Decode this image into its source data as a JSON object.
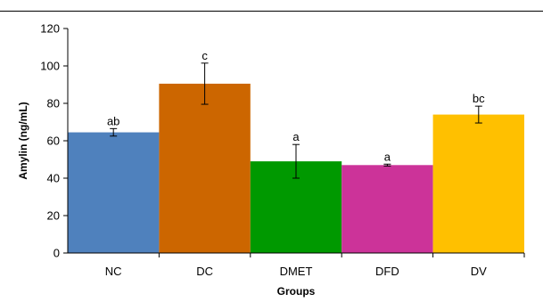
{
  "chart_data": {
    "type": "bar",
    "title": "",
    "xlabel": "Groups",
    "ylabel": "Amylin (ng/mL)",
    "ylim": [
      0,
      120
    ],
    "yticks": [
      0,
      20,
      40,
      60,
      80,
      100,
      120
    ],
    "grid": false,
    "legend": "none",
    "categories": [
      "NC",
      "DC",
      "DMET",
      "DFD",
      "DV"
    ],
    "values": [
      64.5,
      90.5,
      49,
      47,
      74
    ],
    "errors": [
      2,
      11,
      9,
      0.5,
      4.5
    ],
    "significance_labels": [
      "ab",
      "c",
      "a",
      "a",
      "bc"
    ],
    "colors": [
      "#4f81bd",
      "#cc6600",
      "#009900",
      "#cc3399",
      "#ffc000"
    ]
  }
}
